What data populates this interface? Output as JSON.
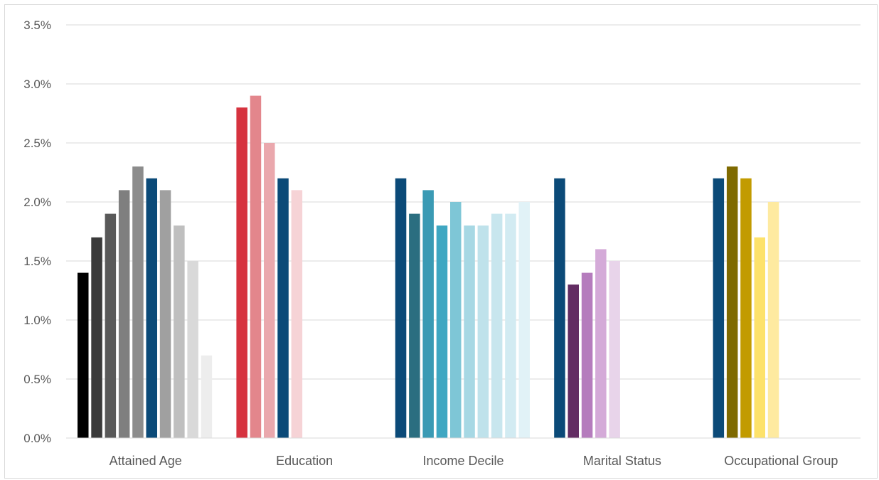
{
  "chart_data": {
    "type": "bar",
    "title": "",
    "xlabel": "",
    "ylabel": "",
    "ylim": [
      0,
      3.5
    ],
    "yticks": [
      "0.0%",
      "0.5%",
      "1.0%",
      "1.5%",
      "2.0%",
      "2.5%",
      "3.0%",
      "3.5%"
    ],
    "grid": true,
    "legend": "none",
    "groups": [
      {
        "label": "Attained Age",
        "values": [
          1.4,
          1.7,
          1.9,
          2.1,
          2.3,
          2.2,
          2.1,
          1.8,
          1.5,
          0.7
        ],
        "colors": [
          "#000000",
          "#3a3a3a",
          "#595959",
          "#7f7f7f",
          "#8c8c8c",
          "#0b4a78",
          "#a0a0a0",
          "#bfbfbf",
          "#d9d9d9",
          "#ededed"
        ]
      },
      {
        "label": "Education",
        "values": [
          2.8,
          2.9,
          2.5,
          2.2,
          2.1
        ],
        "colors": [
          "#d6333f",
          "#e3868c",
          "#eaa8ad",
          "#0b4a78",
          "#f6d3d6"
        ]
      },
      {
        "label": "Income Decile",
        "values": [
          2.2,
          1.9,
          2.1,
          1.8,
          2.0,
          1.8,
          1.8,
          1.9,
          1.9,
          2.0
        ],
        "colors": [
          "#0b4a78",
          "#2b6e80",
          "#3a9ab4",
          "#3fa7c2",
          "#7ec6d6",
          "#a7d8e4",
          "#bfe2eb",
          "#c8e6ee",
          "#d2ebf2",
          "#e1f2f7"
        ]
      },
      {
        "label": "Marital Status",
        "values": [
          2.2,
          1.3,
          1.4,
          1.6,
          1.5
        ],
        "colors": [
          "#0b4a78",
          "#632d63",
          "#b57cbd",
          "#d4aad8",
          "#e8d4ea"
        ]
      },
      {
        "label": "Occupational Group",
        "values": [
          2.2,
          2.3,
          2.2,
          1.7,
          2.0
        ],
        "colors": [
          "#0b4a78",
          "#7f6a00",
          "#c29b00",
          "#fde26b",
          "#feeaa0"
        ]
      }
    ]
  }
}
